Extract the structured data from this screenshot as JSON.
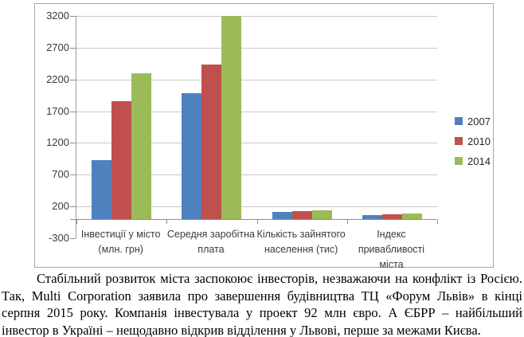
{
  "chart_data": {
    "type": "bar",
    "title": "",
    "categories": [
      [
        "Інвестиції у місто",
        "(млн. грн)"
      ],
      [
        "Середня заробітна",
        "плата"
      ],
      [
        "Кількість зайнятого",
        "населення (тис)"
      ],
      [
        "Індекс",
        "привабливості",
        "міста"
      ]
    ],
    "series": [
      {
        "name": "2007",
        "color": "#4F81BD",
        "values": [
          930,
          1990,
          120,
          65
        ]
      },
      {
        "name": "2010",
        "color": "#C0504D",
        "values": [
          1860,
          2430,
          130,
          72
        ]
      },
      {
        "name": "2014",
        "color": "#9BBB59",
        "values": [
          2300,
          3200,
          145,
          95
        ]
      }
    ],
    "ylim": [
      -300,
      3200
    ],
    "yticks": [
      3200,
      2700,
      2200,
      1700,
      1200,
      700,
      200,
      -300
    ],
    "xlabel": "",
    "ylabel": "",
    "grid": true,
    "legend_position": "right"
  },
  "colors": {
    "gridline": "#c9c9c9",
    "axis": "#8e8e8e",
    "frame": "#a6a6a6",
    "tick_label": "#3a3a3a"
  },
  "caption": {
    "text": "Стабільний розвиток міста заспокоює інвесторів, незважаючи на конфлікт із Росією. Так, Multi Corporation заявила про завершення будівництва ТЦ «Форум Львів» в кінці серпня 2015 року. Компанія інвестувала у проект 92 млн євро. А ЄБРР – найбільший інвестор в Україні – нещодавно відкрив відділення у Львові, перше за межами Києва."
  }
}
